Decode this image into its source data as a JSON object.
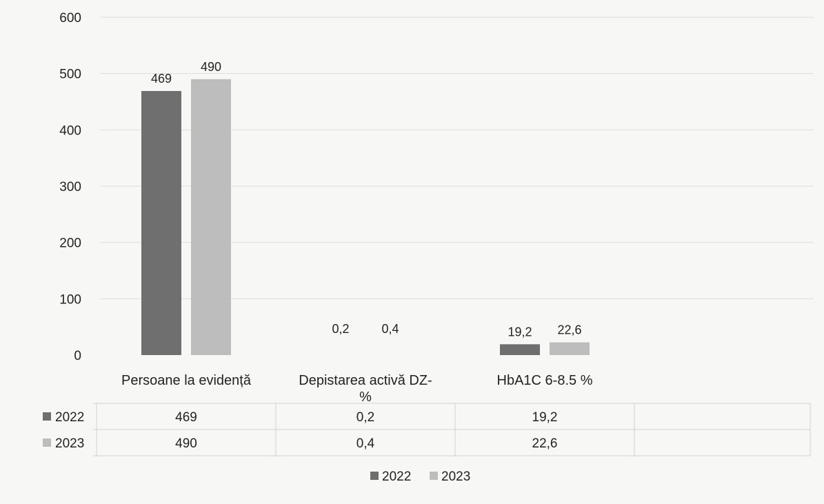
{
  "chart_data": {
    "type": "bar",
    "categories": [
      "Persoane la evidență",
      "Depistarea activă DZ-%",
      "HbA1C 6-8.5 %"
    ],
    "category_label_lines": [
      [
        "Persoane la evidență"
      ],
      [
        "Depistarea activă DZ-",
        "%"
      ],
      [
        "HbA1C 6-8.5 %"
      ]
    ],
    "series": [
      {
        "name": "2022",
        "values": [
          469,
          0.2,
          19.2
        ],
        "labels": [
          "469",
          "0,2",
          "19,2"
        ],
        "color": "#6f6f6f"
      },
      {
        "name": "2023",
        "values": [
          490,
          0.4,
          22.6
        ],
        "labels": [
          "490",
          "0,4",
          "22,6"
        ],
        "color": "#bdbdbd"
      }
    ],
    "ylim": [
      0,
      600
    ],
    "yticks": [
      "0",
      "100",
      "200",
      "300",
      "400",
      "500",
      "600"
    ],
    "grid": true,
    "data_table": true,
    "legend": "bottom"
  }
}
